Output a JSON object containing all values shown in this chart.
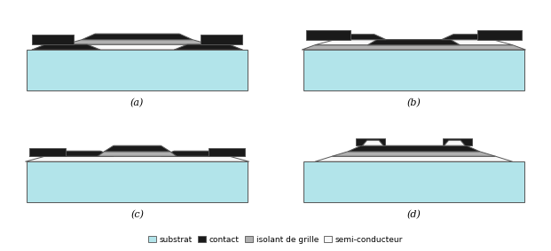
{
  "colors": {
    "substrat": "#b2e4ea",
    "contact": "#1a1a1a",
    "isolant": "#b0b0b0",
    "semi_conducteur": "#f8f8f8",
    "border": "#555555",
    "background": "#ffffff"
  },
  "legend_labels": [
    "substrat",
    "contact",
    "isolant de grille",
    "semi-conducteur"
  ],
  "subplot_labels": [
    "(a)",
    "(b)",
    "(c)",
    "(d)"
  ]
}
